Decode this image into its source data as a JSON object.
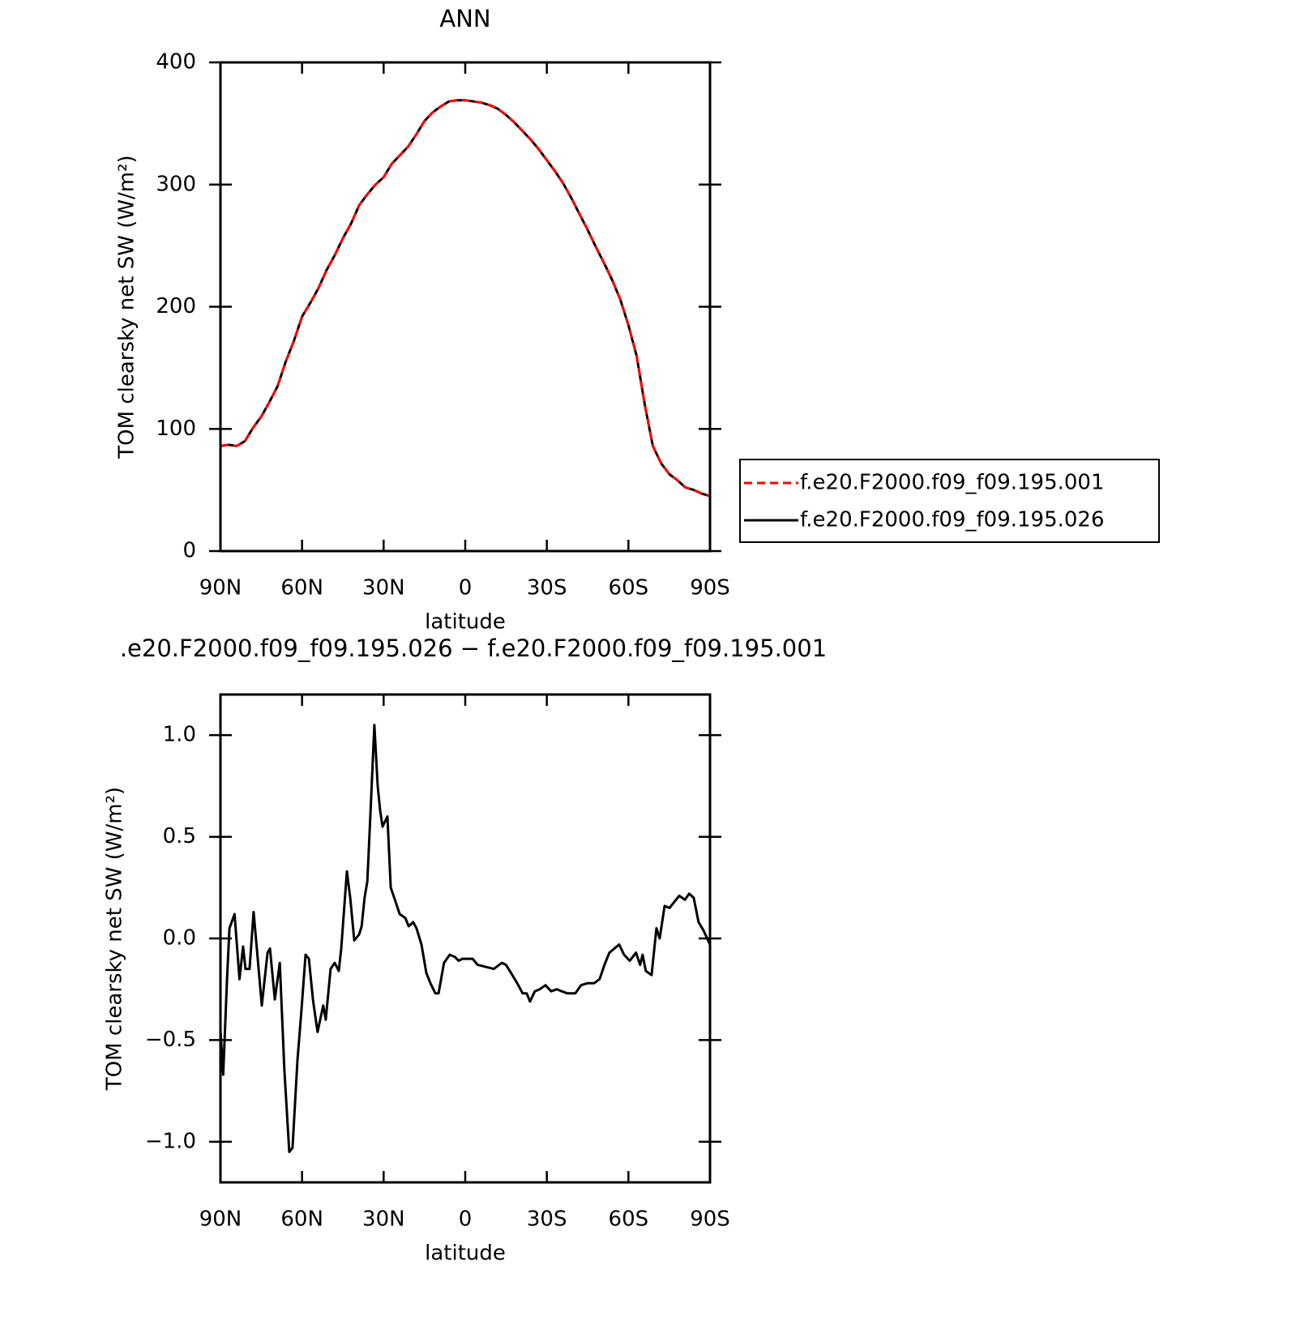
{
  "chart_data": [
    {
      "type": "line",
      "title": "ANN",
      "x_label": "latitude",
      "y_label": "TOM clearsky net SW (W/m²)",
      "xlim": [
        90,
        -90
      ],
      "xticks": [
        {
          "value": 90,
          "label": "90N"
        },
        {
          "value": 60,
          "label": "60N"
        },
        {
          "value": 30,
          "label": "30N"
        },
        0,
        {
          "value": -30,
          "label": "30S"
        },
        {
          "value": -60,
          "label": "60S"
        },
        {
          "value": -90,
          "label": "90S"
        }
      ],
      "ylim": [
        0,
        400
      ],
      "yticks": [
        0,
        100,
        200,
        300,
        400
      ],
      "legend": "right",
      "x": [
        90,
        87,
        84,
        81,
        78,
        75,
        72,
        69,
        66,
        63,
        60,
        57,
        54,
        51,
        48,
        45,
        42,
        39,
        36,
        33,
        30,
        27,
        24,
        21,
        18,
        15,
        12,
        9,
        6,
        3,
        0,
        -3,
        -6,
        -9,
        -12,
        -15,
        -18,
        -21,
        -24,
        -27,
        -30,
        -33,
        -36,
        -39,
        -42,
        -45,
        -48,
        -51,
        -54,
        -57,
        -60,
        -63,
        -66,
        -69,
        -72,
        -75,
        -78,
        -81,
        -84,
        -87,
        -90
      ],
      "series": [
        {
          "name": "f.e20.F2000.f09_f09.195.001",
          "color": "#ff0000",
          "dashed": true,
          "values": [
            86,
            87,
            86,
            90,
            101,
            110,
            122,
            135,
            155,
            172,
            192,
            203,
            215,
            230,
            242,
            256,
            268,
            283,
            292,
            300,
            306,
            317,
            324,
            331,
            341,
            352,
            359,
            364,
            368,
            369,
            369,
            368,
            367,
            365,
            362,
            357,
            351,
            344,
            337,
            329,
            320,
            311,
            301,
            289,
            276,
            263,
            249,
            236,
            222,
            206,
            185,
            160,
            120,
            86,
            72,
            63,
            58,
            52,
            50,
            47,
            45
          ]
        },
        {
          "name": "f.e20.F2000.f09_f09.195.026",
          "color": "#000000",
          "dashed": false,
          "values": [
            86,
            87,
            86,
            90,
            101,
            110,
            122,
            135,
            155,
            172,
            192,
            203,
            215,
            230,
            242,
            256,
            268,
            283,
            292,
            300,
            306,
            317,
            324,
            331,
            341,
            352,
            359,
            364,
            368,
            369,
            369,
            368,
            367,
            365,
            362,
            357,
            351,
            344,
            337,
            329,
            320,
            311,
            301,
            289,
            276,
            263,
            249,
            236,
            222,
            206,
            185,
            160,
            120,
            86,
            72,
            63,
            58,
            52,
            50,
            47,
            45
          ]
        }
      ]
    },
    {
      "type": "line",
      "title": ".e20.F2000.f09_f09.195.026 − f.e20.F2000.f09_f09.195.001",
      "x_label": "latitude",
      "y_label": "TOM clearsky net SW (W/m²)",
      "xlim": [
        90,
        -90
      ],
      "xticks": [
        {
          "value": 90,
          "label": "90N"
        },
        {
          "value": 60,
          "label": "60N"
        },
        {
          "value": 30,
          "label": "30N"
        },
        0,
        {
          "value": -30,
          "label": "30S"
        },
        {
          "value": -60,
          "label": "60S"
        },
        {
          "value": -90,
          "label": "90S"
        }
      ],
      "ylim": [
        -1.2,
        1.2
      ],
      "yticks": [
        {
          "value": -1,
          "label": "−1.0"
        },
        {
          "value": -0.5,
          "label": "−0.5"
        },
        {
          "value": 0,
          "label": "0.0"
        },
        0.5,
        {
          "value": 1,
          "label": "1.0"
        }
      ],
      "x": [
        90,
        89,
        87.6,
        86.7,
        84.8,
        83,
        81.7,
        80.8,
        79.3,
        77.8,
        76.3,
        74.8,
        72.7,
        71.8,
        70,
        68.2,
        66.5,
        64.7,
        63.5,
        61.7,
        60.2,
        58.7,
        57.5,
        56,
        54.3,
        52.2,
        51.3,
        49.5,
        48,
        46.5,
        45.6,
        43.5,
        42.3,
        40.8,
        39,
        38.1,
        37,
        36,
        34.9,
        33.4,
        32.2,
        31.3,
        30.4,
        28.6,
        27.4,
        25.6,
        24.1,
        22,
        20.8,
        19.1,
        17.9,
        16.1,
        14.3,
        12.8,
        11,
        9.8,
        7.8,
        5.7,
        3.9,
        2.4,
        1,
        -1,
        -2.7,
        -4.6,
        -7.5,
        -10.5,
        -13.5,
        -15,
        -17.3,
        -19.1,
        -21.1,
        -22.6,
        -23.8,
        -25.6,
        -27.4,
        -29.5,
        -31.6,
        -33.7,
        -35.5,
        -37.5,
        -40.5,
        -42.6,
        -45,
        -47.4,
        -49.4,
        -51.2,
        -53,
        -54.8,
        -56.6,
        -58.4,
        -60.5,
        -62.8,
        -64.3,
        -65.2,
        -66.4,
        -68.5,
        -70.3,
        -71.5,
        -73.3,
        -75.1,
        -76.9,
        -78.7,
        -80.8,
        -82.3,
        -84,
        -85.8,
        -87.6,
        -90
      ],
      "series": [
        {
          "color": "#000000",
          "dashed": false,
          "values": [
            -0.45,
            -0.67,
            -0.2,
            0.05,
            0.12,
            -0.2,
            -0.04,
            -0.15,
            -0.15,
            0.13,
            -0.1,
            -0.33,
            -0.07,
            -0.05,
            -0.3,
            -0.12,
            -0.65,
            -1.05,
            -1.03,
            -0.6,
            -0.35,
            -0.08,
            -0.1,
            -0.3,
            -0.46,
            -0.33,
            -0.4,
            -0.15,
            -0.12,
            -0.16,
            -0.05,
            0.33,
            0.2,
            -0.01,
            0.02,
            0.06,
            0.2,
            0.28,
            0.6,
            1.05,
            0.75,
            0.63,
            0.55,
            0.6,
            0.25,
            0.18,
            0.12,
            0.1,
            0.06,
            0.08,
            0.05,
            -0.03,
            -0.17,
            -0.22,
            -0.27,
            -0.27,
            -0.12,
            -0.08,
            -0.09,
            -0.11,
            -0.1,
            -0.1,
            -0.1,
            -0.13,
            -0.14,
            -0.15,
            -0.12,
            -0.13,
            -0.18,
            -0.22,
            -0.27,
            -0.27,
            -0.31,
            -0.26,
            -0.25,
            -0.23,
            -0.26,
            -0.25,
            -0.26,
            -0.27,
            -0.27,
            -0.23,
            -0.22,
            -0.22,
            -0.2,
            -0.13,
            -0.07,
            -0.05,
            -0.03,
            -0.08,
            -0.11,
            -0.07,
            -0.13,
            -0.08,
            -0.16,
            -0.18,
            0.05,
            0,
            0.16,
            0.15,
            0.18,
            0.21,
            0.19,
            0.22,
            0.2,
            0.08,
            0.04,
            -0.03
          ]
        }
      ]
    }
  ]
}
